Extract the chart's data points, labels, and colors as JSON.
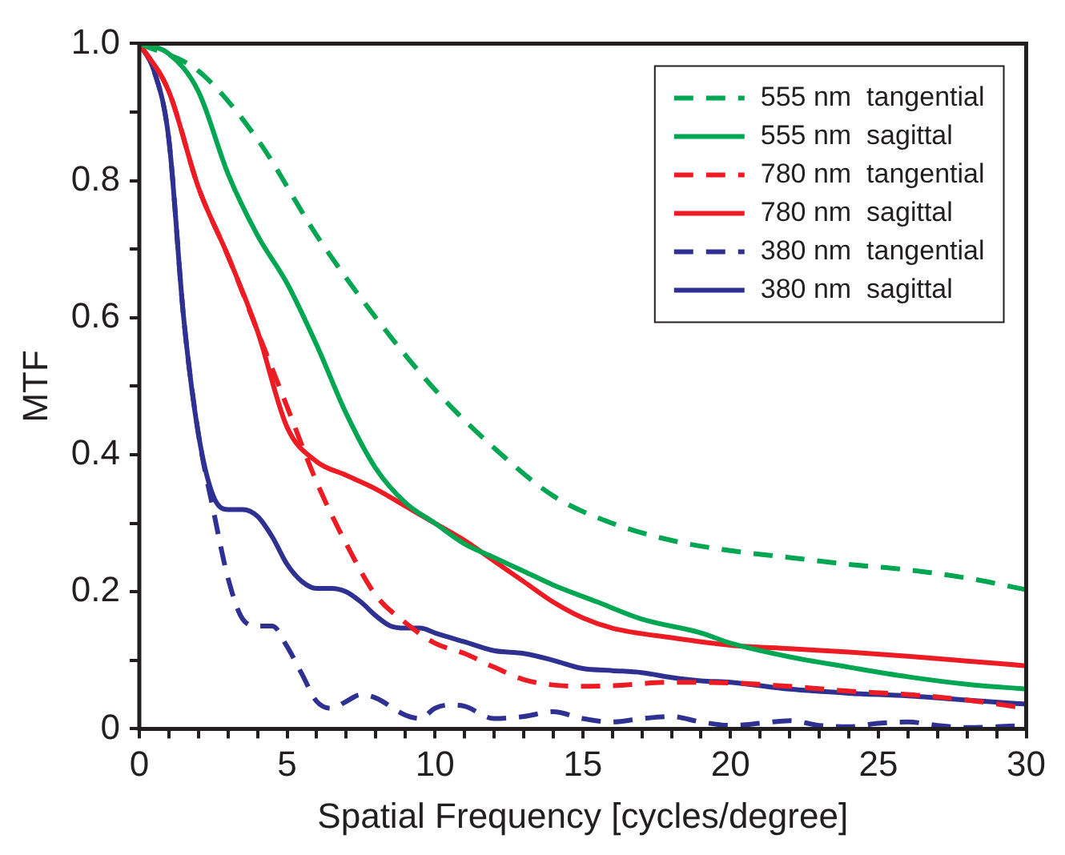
{
  "chart_data": {
    "type": "line",
    "xlabel": "Spatial Frequency [cycles/degree]",
    "ylabel": "MTF",
    "xlim": [
      0,
      30
    ],
    "ylim": [
      0,
      1
    ],
    "xticks": [
      0,
      {
        "value": 1,
        "label": null
      },
      {
        "value": 2,
        "label": null
      },
      {
        "value": 3,
        "label": null
      },
      {
        "value": 4,
        "label": null
      },
      5,
      {
        "value": 6,
        "label": null
      },
      {
        "value": 7,
        "label": null
      },
      {
        "value": 8,
        "label": null
      },
      {
        "value": 9,
        "label": null
      },
      10,
      {
        "value": 11,
        "label": null
      },
      {
        "value": 12,
        "label": null
      },
      {
        "value": 13,
        "label": null
      },
      {
        "value": 14,
        "label": null
      },
      15,
      {
        "value": 16,
        "label": null
      },
      {
        "value": 17,
        "label": null
      },
      {
        "value": 18,
        "label": null
      },
      {
        "value": 19,
        "label": null
      },
      20,
      {
        "value": 21,
        "label": null
      },
      {
        "value": 22,
        "label": null
      },
      {
        "value": 23,
        "label": null
      },
      {
        "value": 24,
        "label": null
      },
      25,
      {
        "value": 26,
        "label": null
      },
      {
        "value": 27,
        "label": null
      },
      {
        "value": 28,
        "label": null
      },
      {
        "value": 29,
        "label": null
      },
      30
    ],
    "yticks": [
      {
        "value": 0,
        "label": "0"
      },
      {
        "value": 0.1,
        "label": null
      },
      {
        "value": 0.2,
        "label": "0.2"
      },
      {
        "value": 0.3,
        "label": null
      },
      {
        "value": 0.4,
        "label": "0.4"
      },
      {
        "value": 0.5,
        "label": null
      },
      {
        "value": 0.6,
        "label": "0.6"
      },
      {
        "value": 0.7,
        "label": null
      },
      {
        "value": 0.8,
        "label": "0.8"
      },
      {
        "value": 0.9,
        "label": null
      },
      {
        "value": 1,
        "label": "1.0"
      }
    ],
    "grid": false,
    "legend": "top right",
    "marker": "none",
    "series": [
      {
        "name": "555 nm  tangential",
        "color": "#00a651",
        "line_style": "dashed",
        "x": [
          0,
          2,
          4,
          6,
          8,
          10,
          12,
          14,
          16,
          18,
          20,
          22,
          24,
          26,
          28,
          30
        ],
        "values": [
          1,
          0.96,
          0.86,
          0.72,
          0.6,
          0.495,
          0.41,
          0.34,
          0.3,
          0.275,
          0.26,
          0.25,
          0.24,
          0.232,
          0.22,
          0.203
        ]
      },
      {
        "name": "555 nm  sagittal",
        "color": "#00a651",
        "line_style": "solid",
        "x": [
          0,
          1,
          2,
          3,
          4,
          5,
          6,
          7,
          8,
          9,
          10,
          11,
          12,
          13,
          14,
          15.5,
          17,
          19,
          20,
          22,
          24,
          26,
          28,
          30
        ],
        "values": [
          1,
          0.985,
          0.93,
          0.81,
          0.72,
          0.65,
          0.56,
          0.46,
          0.38,
          0.33,
          0.3,
          0.27,
          0.25,
          0.23,
          0.21,
          0.185,
          0.16,
          0.14,
          0.125,
          0.105,
          0.09,
          0.076,
          0.065,
          0.058
        ]
      },
      {
        "name": "780 nm  tangential",
        "color": "#ed1c24",
        "line_style": "dashed",
        "x": [
          0,
          1,
          2,
          3,
          4,
          5,
          6,
          7,
          8,
          9,
          10,
          11,
          12,
          13,
          14,
          15,
          16,
          18,
          20,
          22,
          24,
          26,
          28,
          30
        ],
        "values": [
          1,
          0.93,
          0.79,
          0.69,
          0.58,
          0.47,
          0.36,
          0.27,
          0.195,
          0.155,
          0.125,
          0.11,
          0.09,
          0.072,
          0.064,
          0.062,
          0.063,
          0.068,
          0.067,
          0.062,
          0.055,
          0.05,
          0.042,
          0.03
        ]
      },
      {
        "name": "780 nm  sagittal",
        "color": "#ed1c24",
        "line_style": "solid",
        "x": [
          0,
          1,
          2,
          3,
          4,
          5,
          6,
          7,
          8,
          9,
          10,
          11,
          12,
          13,
          14,
          15,
          16,
          18,
          20,
          22,
          24,
          26,
          28,
          30
        ],
        "values": [
          1,
          0.93,
          0.79,
          0.69,
          0.58,
          0.44,
          0.39,
          0.37,
          0.35,
          0.325,
          0.3,
          0.275,
          0.245,
          0.215,
          0.185,
          0.162,
          0.147,
          0.133,
          0.122,
          0.117,
          0.112,
          0.106,
          0.099,
          0.092
        ]
      },
      {
        "name": "380 nm  tangential",
        "color": "#2e3192",
        "line_style": "dashed",
        "x": [
          0,
          0.5,
          1,
          1.5,
          2,
          2.5,
          3,
          3.5,
          4,
          4.5,
          5,
          5.5,
          6,
          6.5,
          7,
          7.5,
          8,
          9,
          9.5,
          10,
          10.5,
          11,
          12,
          13,
          14,
          15,
          16,
          17,
          18,
          19,
          20,
          21,
          22,
          23,
          24,
          25,
          26,
          27,
          28,
          29,
          30
        ],
        "values": [
          1,
          0.96,
          0.86,
          0.6,
          0.43,
          0.32,
          0.22,
          0.16,
          0.15,
          0.15,
          0.12,
          0.08,
          0.04,
          0.03,
          0.04,
          0.05,
          0.045,
          0.02,
          0.015,
          0.03,
          0.035,
          0.033,
          0.015,
          0.018,
          0.025,
          0.015,
          0.01,
          0.015,
          0.018,
          0.01,
          0.005,
          0.008,
          0.012,
          0.005,
          0.003,
          0.008,
          0.01,
          0.005,
          0.002,
          0.003,
          0.005
        ]
      },
      {
        "name": "380 nm  sagittal",
        "color": "#2e3192",
        "line_style": "solid",
        "x": [
          0,
          0.5,
          1,
          1.5,
          2,
          2.5,
          3,
          3.5,
          4,
          4.5,
          5,
          5.5,
          6,
          6.5,
          7,
          7.5,
          8,
          8.5,
          9,
          9.5,
          10,
          11,
          12,
          13,
          14,
          15,
          16,
          17,
          18,
          19,
          20,
          22,
          24,
          26,
          28,
          30
        ],
        "values": [
          1,
          0.96,
          0.86,
          0.6,
          0.43,
          0.34,
          0.32,
          0.32,
          0.31,
          0.28,
          0.24,
          0.215,
          0.205,
          0.205,
          0.2,
          0.185,
          0.165,
          0.15,
          0.147,
          0.147,
          0.14,
          0.127,
          0.114,
          0.11,
          0.1,
          0.088,
          0.085,
          0.082,
          0.075,
          0.07,
          0.068,
          0.058,
          0.052,
          0.048,
          0.042,
          0.036
        ]
      }
    ]
  }
}
